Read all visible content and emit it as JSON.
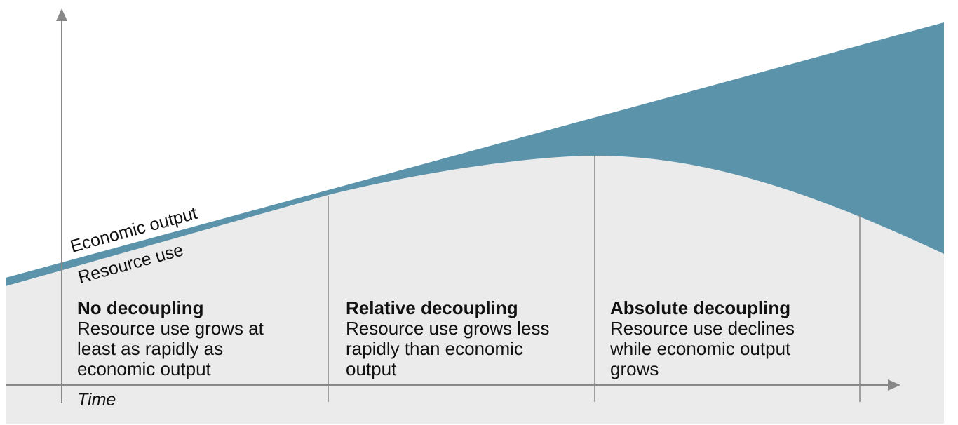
{
  "axes": {
    "x_label": "Time"
  },
  "curves": {
    "economic_output": "Economic output",
    "resource_use": "Resource use"
  },
  "phases": [
    {
      "title": "No decoupling",
      "lines": [
        "Resource use grows at",
        "least as rapidly as",
        "economic output"
      ]
    },
    {
      "title": "Relative decoupling",
      "lines": [
        "Resource use grows less",
        "rapidly than economic",
        "output"
      ]
    },
    {
      "title": "Absolute decoupling",
      "lines": [
        "Resource use declines",
        "while economic output",
        "grows"
      ]
    }
  ]
}
